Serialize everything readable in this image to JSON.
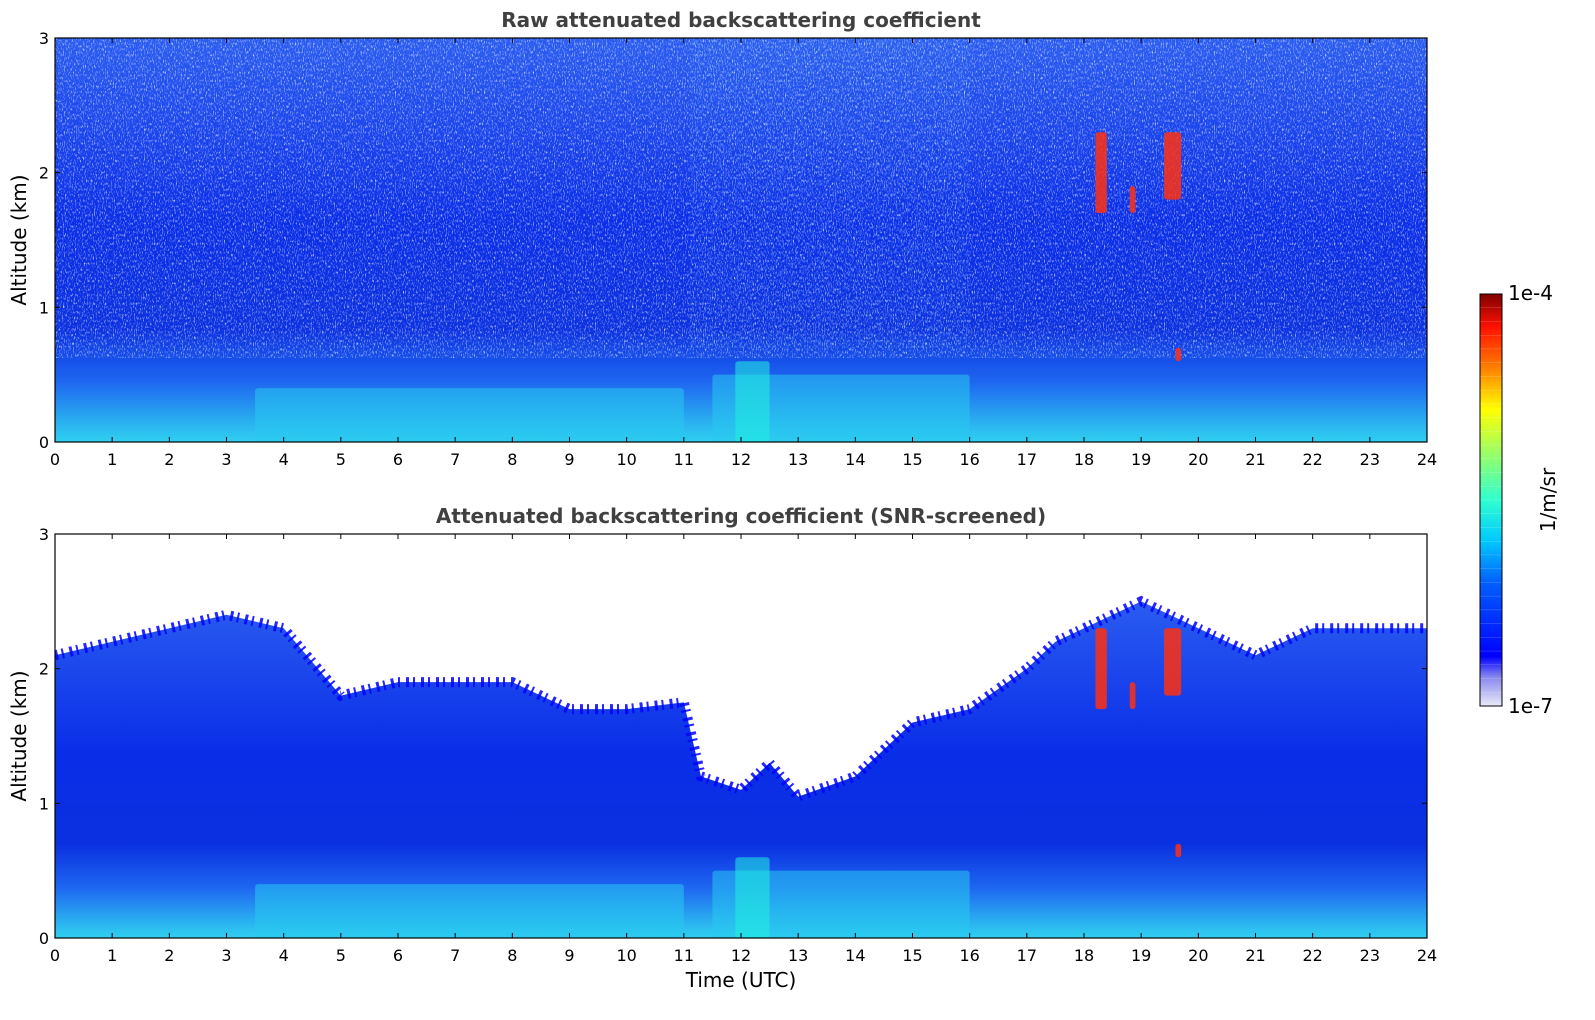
{
  "chart_data": [
    {
      "type": "heatmap",
      "title": "Raw attenuated backscattering coefficient",
      "xlabel": "",
      "ylabel": "Altitude (km)",
      "xlim": [
        0,
        24
      ],
      "ylim": [
        0,
        3
      ],
      "x_ticks": [
        "0",
        "1",
        "2",
        "3",
        "4",
        "5",
        "6",
        "7",
        "8",
        "9",
        "10",
        "11",
        "12",
        "13",
        "14",
        "15",
        "16",
        "17",
        "18",
        "19",
        "20",
        "21",
        "22",
        "23",
        "24"
      ],
      "y_ticks": [
        "0",
        "1",
        "2",
        "3"
      ],
      "features": [
        {
          "description": "aerosol layer",
          "x": [
            3.5,
            11
          ],
          "y": [
            0,
            0.4
          ]
        },
        {
          "description": "aerosol layer",
          "x": [
            11.5,
            16
          ],
          "y": [
            0,
            0.5
          ]
        },
        {
          "description": "cloud",
          "x": [
            18.2,
            18.4
          ],
          "y": [
            1.7,
            2.3
          ]
        },
        {
          "description": "cloud",
          "x": [
            18.8,
            18.9
          ],
          "y": [
            1.7,
            1.9
          ]
        },
        {
          "description": "cloud",
          "x": [
            19.4,
            19.7
          ],
          "y": [
            1.8,
            2.3
          ]
        },
        {
          "description": "cloud",
          "x": [
            19.6,
            19.7
          ],
          "y": [
            0.6,
            0.7
          ]
        },
        {
          "description": "aerosol plume",
          "x": [
            11.9,
            12.5
          ],
          "y": [
            0,
            0.6
          ]
        }
      ]
    },
    {
      "type": "heatmap",
      "title": "Attenuated backscattering coefficient (SNR-screened)",
      "xlabel": "Time (UTC)",
      "ylabel": "Altitude (km)",
      "xlim": [
        0,
        24
      ],
      "ylim": [
        0,
        3
      ],
      "x_ticks": [
        "0",
        "1",
        "2",
        "3",
        "4",
        "5",
        "6",
        "7",
        "8",
        "9",
        "10",
        "11",
        "12",
        "13",
        "14",
        "15",
        "16",
        "17",
        "18",
        "19",
        "20",
        "21",
        "22",
        "23",
        "24"
      ],
      "y_ticks": [
        "0",
        "1",
        "2",
        "3"
      ],
      "valid_data_top_km": {
        "x": [
          0,
          1,
          2,
          3,
          4,
          5,
          6,
          7,
          8,
          9,
          10,
          11,
          11.3,
          12,
          12.5,
          13,
          14,
          15,
          16,
          17,
          17.5,
          18,
          19,
          20,
          21,
          22,
          23,
          24
        ],
        "y": [
          2.1,
          2.2,
          2.3,
          2.4,
          2.3,
          1.8,
          1.9,
          1.9,
          1.9,
          1.7,
          1.7,
          1.75,
          1.2,
          1.1,
          1.3,
          1.05,
          1.2,
          1.6,
          1.7,
          2.0,
          2.2,
          2.3,
          2.5,
          2.3,
          2.1,
          2.3,
          2.3,
          2.3
        ]
      }
    }
  ],
  "colorbar": {
    "label": "1/m/sr",
    "max_label": "1e-4",
    "min_label": "1e-7",
    "scale": "log",
    "colormap": "jet"
  }
}
